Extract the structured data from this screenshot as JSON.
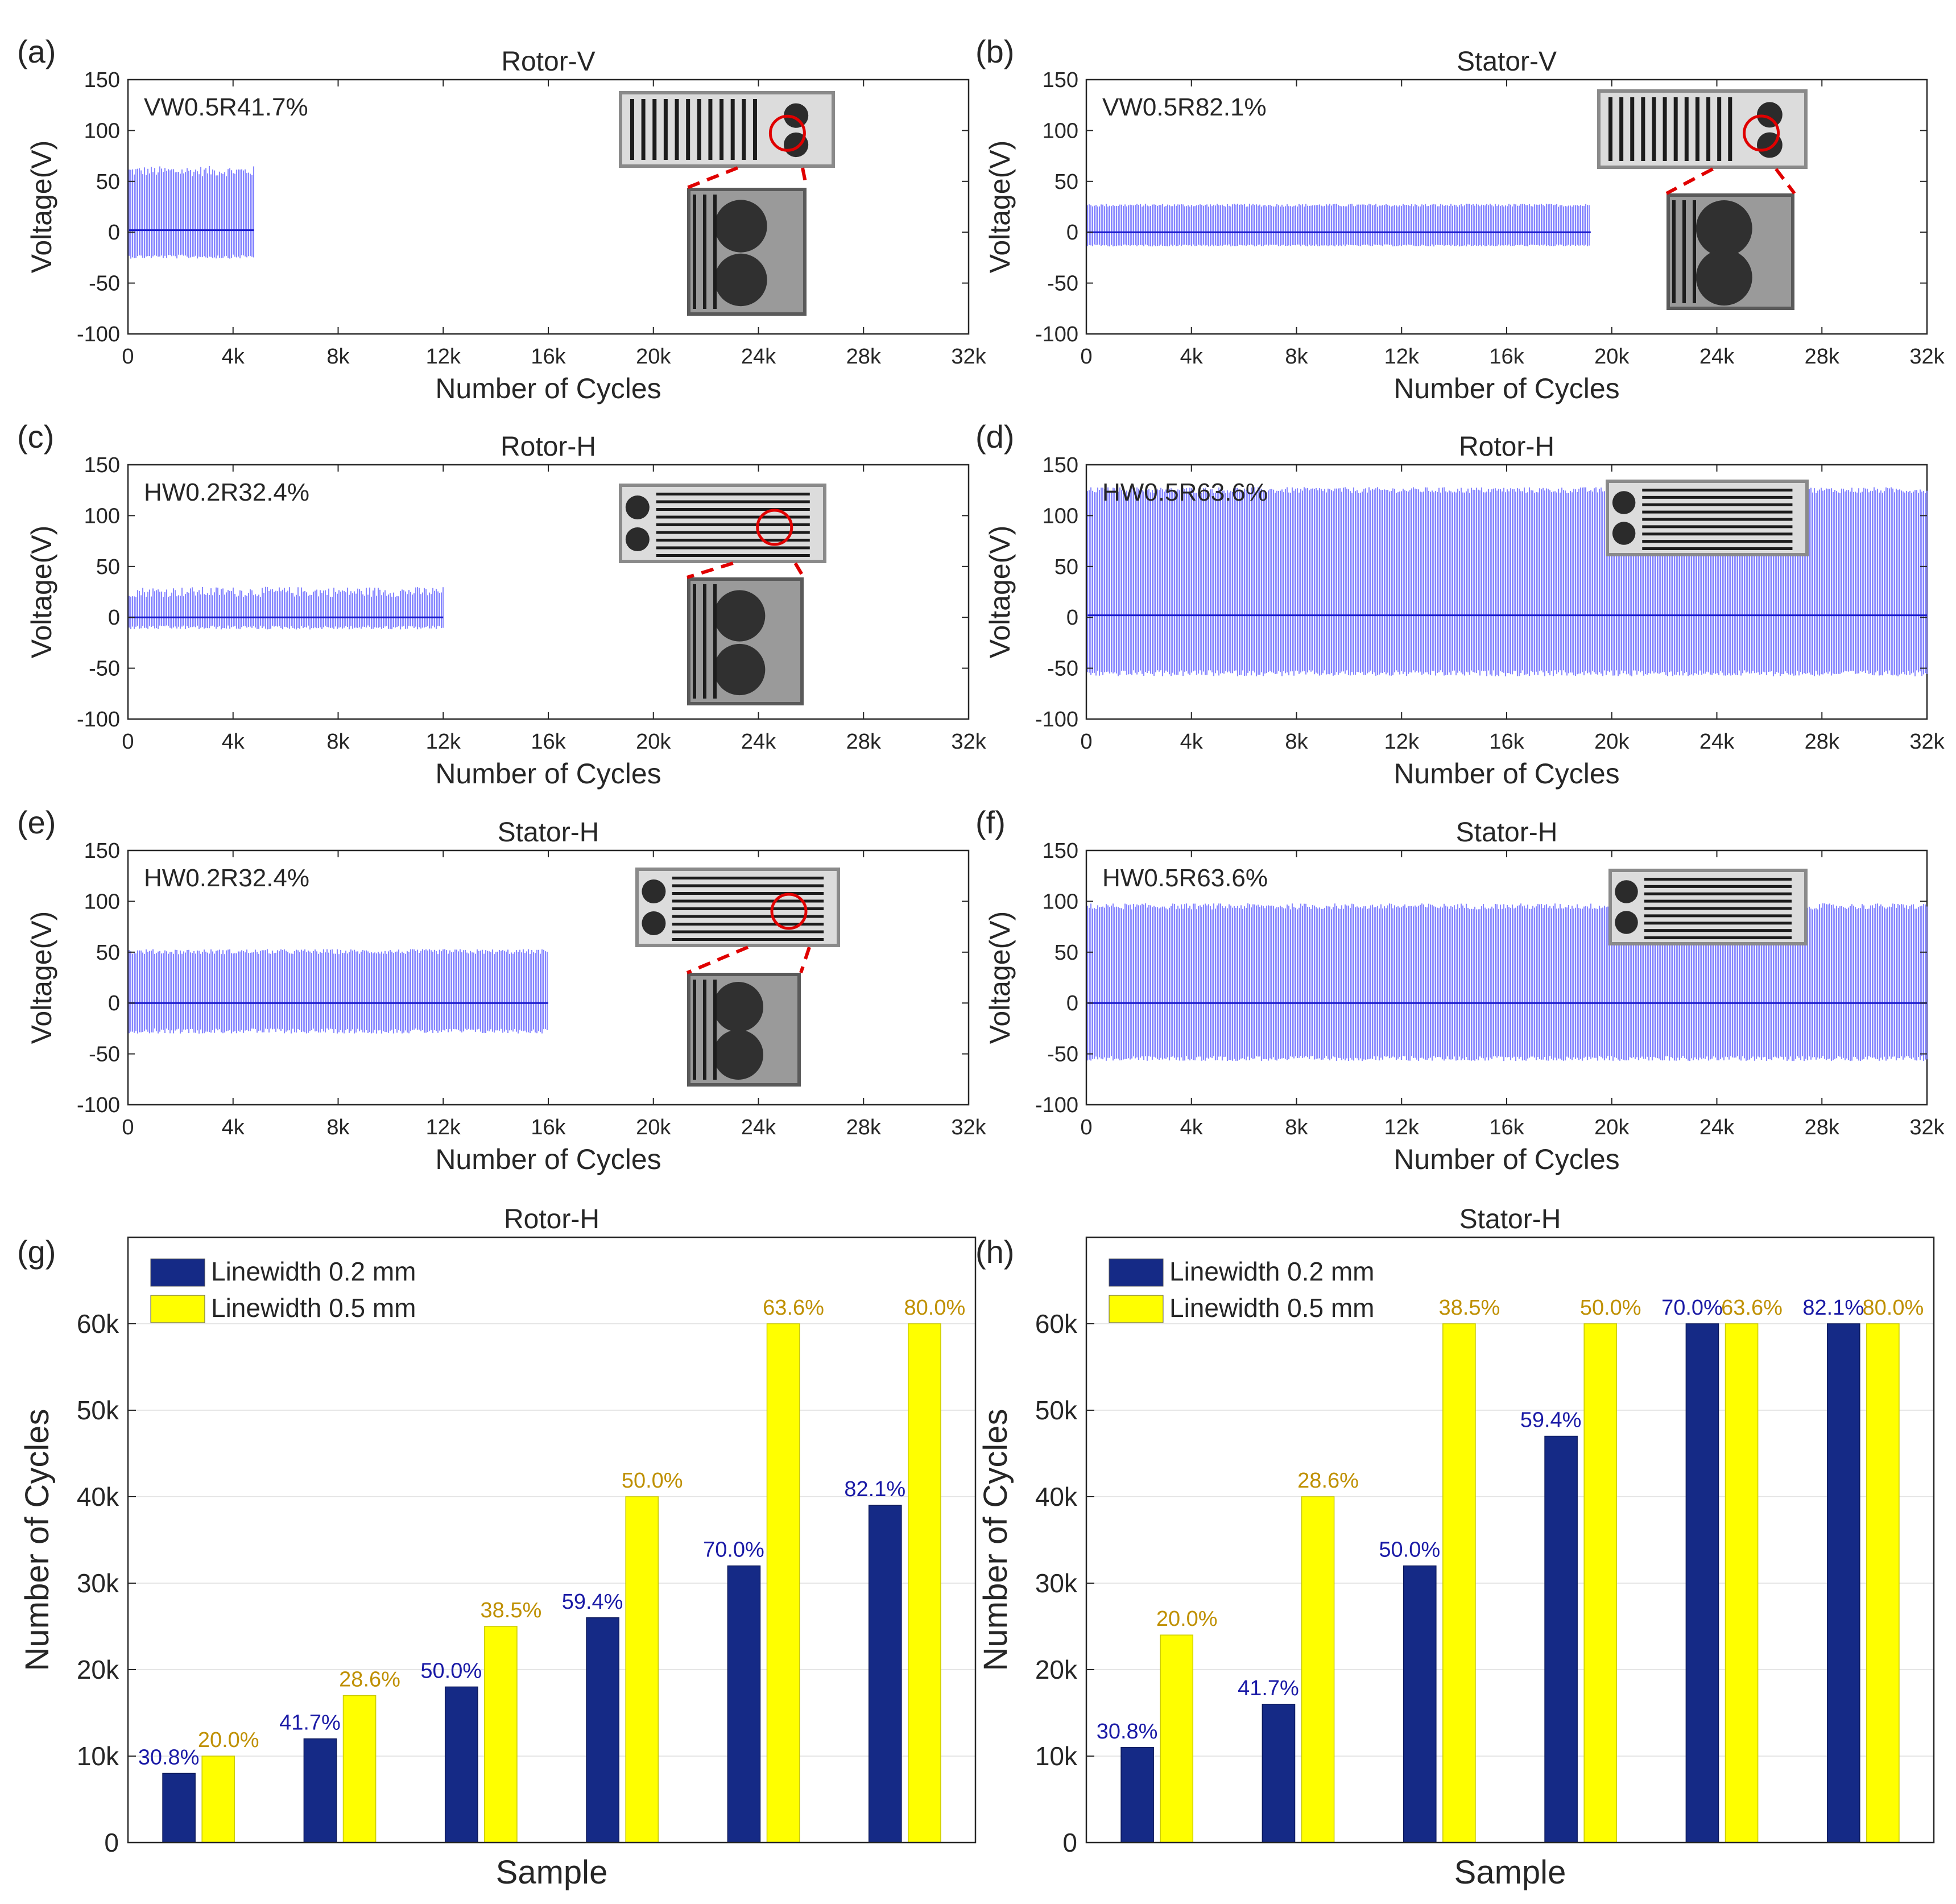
{
  "colors": {
    "signal": "#6b6bff",
    "signal_center": "#1a1acc",
    "bar_02": "#152a86",
    "bar_05": "#ffff00",
    "label_02": "#1a1aa6",
    "label_05": "#bf9000",
    "axis": "#262626",
    "grid": "#e6e6e6",
    "annotation": "#e00000"
  },
  "chart_data": [
    {
      "panel_label": "(a)",
      "type": "line",
      "title": "Rotor-V",
      "sample_label": "VW0.5R41.7%",
      "xlabel": "Number of Cycles",
      "ylabel": "Voltage(V)",
      "xlim": [
        0,
        32000
      ],
      "ylim": [
        -100,
        150
      ],
      "xticks": [
        0,
        4000,
        8000,
        12000,
        16000,
        20000,
        24000,
        28000,
        32000
      ],
      "xtick_labels": [
        "0",
        "4k",
        "8k",
        "12k",
        "16k",
        "20k",
        "24k",
        "28k",
        "32k"
      ],
      "yticks": [
        -100,
        -50,
        0,
        50,
        100,
        150
      ],
      "ytick_labels": [
        "-100",
        "-50",
        "0",
        "50",
        "100",
        "150"
      ],
      "series": [
        {
          "name": "voltage",
          "x_end": 4800,
          "upper": 55,
          "upper_max": 65,
          "lower": -22,
          "lower_min": -26,
          "center": 2
        }
      ],
      "insets": [
        {
          "name": "rotor-v-photo",
          "kind": "vgrid",
          "circle": true
        },
        {
          "name": "rotor-v-zoom",
          "kind": "zoom"
        }
      ]
    },
    {
      "panel_label": "(b)",
      "type": "line",
      "title": "Stator-V",
      "sample_label": "VW0.5R82.1%",
      "xlabel": "Number of Cycles",
      "ylabel": "Voltage(V)",
      "xlim": [
        0,
        32000
      ],
      "ylim": [
        -100,
        150
      ],
      "xticks": [
        0,
        4000,
        8000,
        12000,
        16000,
        20000,
        24000,
        28000,
        32000
      ],
      "xtick_labels": [
        "0",
        "4k",
        "8k",
        "12k",
        "16k",
        "20k",
        "24k",
        "28k",
        "32k"
      ],
      "yticks": [
        -100,
        -50,
        0,
        50,
        100,
        150
      ],
      "ytick_labels": [
        "-100",
        "-50",
        "0",
        "50",
        "100",
        "150"
      ],
      "series": [
        {
          "name": "voltage",
          "x_end": 19200,
          "upper": 25,
          "upper_max": 28,
          "lower": -12,
          "lower_min": -14,
          "center": 0
        }
      ],
      "insets": [
        {
          "name": "stator-v-photo",
          "kind": "vgrid",
          "circle": true
        },
        {
          "name": "stator-v-zoom",
          "kind": "zoom"
        }
      ]
    },
    {
      "panel_label": "(c)",
      "type": "line",
      "title": "Rotor-H",
      "sample_label": "HW0.2R32.4%",
      "xlabel": "Number of Cycles",
      "ylabel": "Voltage(V)",
      "xlim": [
        0,
        32000
      ],
      "ylim": [
        -100,
        150
      ],
      "xticks": [
        0,
        4000,
        8000,
        12000,
        16000,
        20000,
        24000,
        28000,
        32000
      ],
      "xtick_labels": [
        "0",
        "4k",
        "8k",
        "12k",
        "16k",
        "20k",
        "24k",
        "28k",
        "32k"
      ],
      "yticks": [
        -100,
        -50,
        0,
        50,
        100,
        150
      ],
      "ytick_labels": [
        "-100",
        "-50",
        "0",
        "50",
        "100",
        "150"
      ],
      "series": [
        {
          "name": "voltage",
          "x_end": 12000,
          "upper": 20,
          "upper_max": 30,
          "lower": -8,
          "lower_min": -12,
          "center": 0
        }
      ],
      "insets": [
        {
          "name": "rotor-h-photo",
          "kind": "hgrid",
          "circle": true
        },
        {
          "name": "rotor-h-zoom",
          "kind": "zoom"
        }
      ]
    },
    {
      "panel_label": "(d)",
      "type": "line",
      "title": "Rotor-H",
      "sample_label": "HW0.5R63.6%",
      "xlabel": "Number of Cycles",
      "ylabel": "Voltage(V)",
      "xlim": [
        0,
        32000
      ],
      "ylim": [
        -100,
        150
      ],
      "xticks": [
        0,
        4000,
        8000,
        12000,
        16000,
        20000,
        24000,
        28000,
        32000
      ],
      "xtick_labels": [
        "0",
        "4k",
        "8k",
        "12k",
        "16k",
        "20k",
        "24k",
        "28k",
        "32k"
      ],
      "yticks": [
        -100,
        -50,
        0,
        50,
        100,
        150
      ],
      "ytick_labels": [
        "-100",
        "-50",
        "0",
        "50",
        "100",
        "150"
      ],
      "series": [
        {
          "name": "voltage",
          "x_end": 32000,
          "upper": 122,
          "upper_max": 128,
          "lower": -52,
          "lower_min": -58,
          "center": 2
        }
      ],
      "insets": [
        {
          "name": "rotor-h-intact-photo",
          "kind": "hgrid",
          "circle": false
        }
      ]
    },
    {
      "panel_label": "(e)",
      "type": "line",
      "title": "Stator-H",
      "sample_label": "HW0.2R32.4%",
      "xlabel": "Number of Cycles",
      "ylabel": "Voltage(V)",
      "xlim": [
        0,
        32000
      ],
      "ylim": [
        -100,
        150
      ],
      "xticks": [
        0,
        4000,
        8000,
        12000,
        16000,
        20000,
        24000,
        28000,
        32000
      ],
      "xtick_labels": [
        "0",
        "4k",
        "8k",
        "12k",
        "16k",
        "20k",
        "24k",
        "28k",
        "32k"
      ],
      "yticks": [
        -100,
        -50,
        0,
        50,
        100,
        150
      ],
      "ytick_labels": [
        "-100",
        "-50",
        "0",
        "50",
        "100",
        "150"
      ],
      "series": [
        {
          "name": "voltage",
          "x_end": 16000,
          "upper": 48,
          "upper_max": 53,
          "lower": -25,
          "lower_min": -30,
          "center": 0
        }
      ],
      "insets": [
        {
          "name": "stator-h-photo",
          "kind": "hgrid",
          "circle": true
        },
        {
          "name": "stator-h-zoom",
          "kind": "zoom"
        }
      ]
    },
    {
      "panel_label": "(f)",
      "type": "line",
      "title": "Stator-H",
      "sample_label": "HW0.5R63.6%",
      "xlabel": "Number of Cycles",
      "ylabel": "Voltage(V)",
      "xlim": [
        0,
        32000
      ],
      "ylim": [
        -100,
        150
      ],
      "xticks": [
        0,
        4000,
        8000,
        12000,
        16000,
        20000,
        24000,
        28000,
        32000
      ],
      "xtick_labels": [
        "0",
        "4k",
        "8k",
        "12k",
        "16k",
        "20k",
        "24k",
        "28k",
        "32k"
      ],
      "yticks": [
        -100,
        -50,
        0,
        50,
        100,
        150
      ],
      "ytick_labels": [
        "-100",
        "-50",
        "0",
        "50",
        "100",
        "150"
      ],
      "series": [
        {
          "name": "voltage",
          "x_end": 32000,
          "upper": 92,
          "upper_max": 98,
          "lower": -52,
          "lower_min": -57,
          "center": 0
        }
      ],
      "insets": [
        {
          "name": "stator-h-intact-photo",
          "kind": "hgrid",
          "circle": false
        }
      ]
    },
    {
      "panel_label": "(g)",
      "type": "bar",
      "title": "Rotor-H",
      "xlabel": "Sample",
      "ylabel": "Number of Cycles",
      "ylim": [
        0,
        70000
      ],
      "yticks": [
        0,
        10000,
        20000,
        30000,
        40000,
        50000,
        60000
      ],
      "ytick_labels": [
        "0",
        "10k",
        "20k",
        "30k",
        "40k",
        "50k",
        "60k"
      ],
      "groups": 6,
      "series": [
        {
          "name": "Linewidth 0.2 mm",
          "values": [
            8000,
            12000,
            18000,
            26000,
            32000,
            39000
          ],
          "labels": [
            "30.8%",
            "41.7%",
            "50.0%",
            "59.4%",
            "70.0%",
            "82.1%"
          ]
        },
        {
          "name": "Linewidth 0.5 mm",
          "values": [
            10000,
            17000,
            25000,
            40000,
            60000,
            60000
          ],
          "labels": [
            "20.0%",
            "28.6%",
            "38.5%",
            "50.0%",
            "63.6%",
            "80.0%"
          ]
        }
      ]
    },
    {
      "panel_label": "(h)",
      "type": "bar",
      "title": "Stator-H",
      "xlabel": "Sample",
      "ylabel": "Number of Cycles",
      "ylim": [
        0,
        70000
      ],
      "yticks": [
        0,
        10000,
        20000,
        30000,
        40000,
        50000,
        60000
      ],
      "ytick_labels": [
        "0",
        "10k",
        "20k",
        "30k",
        "40k",
        "50k",
        "60k"
      ],
      "groups": 6,
      "series": [
        {
          "name": "Linewidth 0.2 mm",
          "values": [
            11000,
            16000,
            32000,
            47000,
            60000,
            60000
          ],
          "labels": [
            "30.8%",
            "41.7%",
            "50.0%",
            "59.4%",
            "70.0%",
            "82.1%"
          ]
        },
        {
          "name": "Linewidth 0.5 mm",
          "values": [
            24000,
            40000,
            60000,
            60000,
            60000,
            60000
          ],
          "labels": [
            "20.0%",
            "28.6%",
            "38.5%",
            "50.0%",
            "63.6%",
            "80.0%"
          ]
        }
      ]
    }
  ]
}
